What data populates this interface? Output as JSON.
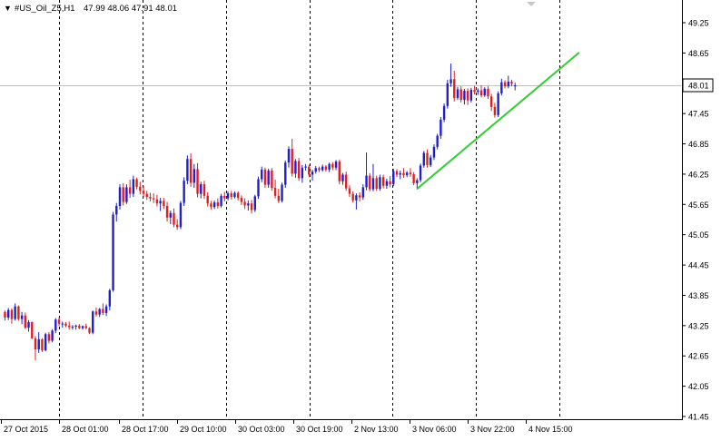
{
  "header": {
    "arrow": "▼",
    "symbol": "#US_Oil_Z5,H1",
    "ohlc": "47.99 48.06 47.91 48.01"
  },
  "chart_data": {
    "type": "candlestick",
    "ylim": [
      41.45,
      49.55
    ],
    "y_ticks": [
      "49.25",
      "48.65",
      "48.01",
      "47.45",
      "46.85",
      "46.25",
      "45.65",
      "45.05",
      "44.45",
      "43.85",
      "43.25",
      "42.65",
      "42.05",
      "41.45"
    ],
    "x_ticks": [
      "27 Oct 2015",
      "28 Oct 01:00",
      "28 Oct 17:00",
      "29 Oct 10:00",
      "30 Oct 03:00",
      "30 Oct 19:00",
      "2 Nov 13:00",
      "3 Nov 06:00",
      "3 Nov 22:00",
      "4 Nov 15:00"
    ],
    "current_price": 48.01,
    "grid": "vertical dashed at date ticks",
    "colors": {
      "up": "#1f1fd0",
      "down": "#e02020",
      "trendline": "#33cc33",
      "price_line": "#c0c0c0",
      "axis": "#000000"
    },
    "trendline": {
      "from": {
        "index": 122,
        "value": 45.96
      },
      "to": {
        "index": 170,
        "value": 48.66
      }
    },
    "candles": [
      [
        43.52,
        43.55,
        43.35,
        43.41
      ],
      [
        43.41,
        43.6,
        43.36,
        43.56
      ],
      [
        43.56,
        43.59,
        43.29,
        43.38
      ],
      [
        43.38,
        43.69,
        43.35,
        43.63
      ],
      [
        43.63,
        43.65,
        43.35,
        43.38
      ],
      [
        43.38,
        43.52,
        43.28,
        43.45
      ],
      [
        43.45,
        43.51,
        43.18,
        43.21
      ],
      [
        43.21,
        43.36,
        43.13,
        43.32
      ],
      [
        43.32,
        43.33,
        42.98,
        43.0
      ],
      [
        43.0,
        43.04,
        42.56,
        42.78
      ],
      [
        42.78,
        43.12,
        42.71,
        42.98
      ],
      [
        42.98,
        43.0,
        42.73,
        42.76
      ],
      [
        42.76,
        43.11,
        42.74,
        43.08
      ],
      [
        43.08,
        43.12,
        42.9,
        42.95
      ],
      [
        42.95,
        43.18,
        42.92,
        43.15
      ],
      [
        43.15,
        43.4,
        43.1,
        43.37
      ],
      [
        43.37,
        43.41,
        43.24,
        43.29
      ],
      [
        43.29,
        43.33,
        43.21,
        43.29
      ],
      [
        43.29,
        43.32,
        43.22,
        43.25
      ],
      [
        43.25,
        43.33,
        43.17,
        43.22
      ],
      [
        43.22,
        43.26,
        43.17,
        43.23
      ],
      [
        43.23,
        43.27,
        43.17,
        43.25
      ],
      [
        43.25,
        43.28,
        43.18,
        43.2
      ],
      [
        43.2,
        43.25,
        43.17,
        43.24
      ],
      [
        43.24,
        43.29,
        43.18,
        43.2
      ],
      [
        43.2,
        43.22,
        43.08,
        43.11
      ],
      [
        43.11,
        43.55,
        43.08,
        43.53
      ],
      [
        43.53,
        43.61,
        43.43,
        43.47
      ],
      [
        43.47,
        43.6,
        43.42,
        43.58
      ],
      [
        43.58,
        43.69,
        43.46,
        43.5
      ],
      [
        43.5,
        43.67,
        43.44,
        43.63
      ],
      [
        43.63,
        43.98,
        43.55,
        43.95
      ],
      [
        43.95,
        45.5,
        43.92,
        45.45
      ],
      [
        45.45,
        45.68,
        45.31,
        45.62
      ],
      [
        45.62,
        46.05,
        45.55,
        45.99
      ],
      [
        45.99,
        46.07,
        45.63,
        45.7
      ],
      [
        45.7,
        46.05,
        45.66,
        45.99
      ],
      [
        45.99,
        46.14,
        45.78,
        45.86
      ],
      [
        45.86,
        46.22,
        45.8,
        46.15
      ],
      [
        46.15,
        46.18,
        45.95,
        46.0
      ],
      [
        46.0,
        46.1,
        45.85,
        45.92
      ],
      [
        45.92,
        46.02,
        45.79,
        45.86
      ],
      [
        45.86,
        45.92,
        45.74,
        45.8
      ],
      [
        45.8,
        45.88,
        45.71,
        45.77
      ],
      [
        45.77,
        45.87,
        45.68,
        45.75
      ],
      [
        45.75,
        45.84,
        45.61,
        45.67
      ],
      [
        45.67,
        45.78,
        45.52,
        45.72
      ],
      [
        45.72,
        45.78,
        45.56,
        45.62
      ],
      [
        45.62,
        45.7,
        45.31,
        45.39
      ],
      [
        45.39,
        45.53,
        45.26,
        45.48
      ],
      [
        45.48,
        45.57,
        45.2,
        45.25
      ],
      [
        45.25,
        45.36,
        45.15,
        45.2
      ],
      [
        45.2,
        45.72,
        45.16,
        45.68
      ],
      [
        45.68,
        46.19,
        45.62,
        46.12
      ],
      [
        46.12,
        46.62,
        46.05,
        46.55
      ],
      [
        46.55,
        46.66,
        46.0,
        46.08
      ],
      [
        46.08,
        46.45,
        45.98,
        46.35
      ],
      [
        46.35,
        46.47,
        45.79,
        45.86
      ],
      [
        45.86,
        46.1,
        45.77,
        46.05
      ],
      [
        46.05,
        46.12,
        45.76,
        45.82
      ],
      [
        45.82,
        45.89,
        45.61,
        45.67
      ],
      [
        45.67,
        45.72,
        45.55,
        45.6
      ],
      [
        45.6,
        45.73,
        45.56,
        45.69
      ],
      [
        45.69,
        45.77,
        45.57,
        45.62
      ],
      [
        45.62,
        45.86,
        45.59,
        45.82
      ],
      [
        45.82,
        45.9,
        45.71,
        45.77
      ],
      [
        45.77,
        45.91,
        45.73,
        45.87
      ],
      [
        45.87,
        45.92,
        45.75,
        45.8
      ],
      [
        45.8,
        45.91,
        45.77,
        45.88
      ],
      [
        45.88,
        45.91,
        45.73,
        45.78
      ],
      [
        45.78,
        45.83,
        45.64,
        45.7
      ],
      [
        45.7,
        45.77,
        45.56,
        45.63
      ],
      [
        45.63,
        45.73,
        45.53,
        45.67
      ],
      [
        45.67,
        45.74,
        45.47,
        45.54
      ],
      [
        45.54,
        45.84,
        45.5,
        45.81
      ],
      [
        45.81,
        46.2,
        45.76,
        46.15
      ],
      [
        46.15,
        46.4,
        46.09,
        46.34
      ],
      [
        46.34,
        46.38,
        45.98,
        46.04
      ],
      [
        46.04,
        46.36,
        45.98,
        46.32
      ],
      [
        46.32,
        46.37,
        45.92,
        45.98
      ],
      [
        45.98,
        46.14,
        45.77,
        45.82
      ],
      [
        45.82,
        45.96,
        45.68,
        45.72
      ],
      [
        45.72,
        46.08,
        45.69,
        46.04
      ],
      [
        46.04,
        46.52,
        45.98,
        46.48
      ],
      [
        46.48,
        46.8,
        46.38,
        46.75
      ],
      [
        46.75,
        46.95,
        46.2,
        46.26
      ],
      [
        46.26,
        46.55,
        46.18,
        46.51
      ],
      [
        46.51,
        46.57,
        46.12,
        46.17
      ],
      [
        46.17,
        46.43,
        46.08,
        46.38
      ],
      [
        46.38,
        46.45,
        46.32,
        46.4
      ],
      [
        46.4,
        46.44,
        46.19,
        46.24
      ],
      [
        46.24,
        46.34,
        46.12,
        46.3
      ],
      [
        46.3,
        46.41,
        46.26,
        46.37
      ],
      [
        46.37,
        46.4,
        46.29,
        46.33
      ],
      [
        46.33,
        46.44,
        46.3,
        46.4
      ],
      [
        46.4,
        46.43,
        46.3,
        46.34
      ],
      [
        46.34,
        46.48,
        46.29,
        46.45
      ],
      [
        46.45,
        46.49,
        46.33,
        46.38
      ],
      [
        46.38,
        46.53,
        46.33,
        46.5
      ],
      [
        46.5,
        46.54,
        46.05,
        46.11
      ],
      [
        46.11,
        46.27,
        46.04,
        46.24
      ],
      [
        46.24,
        46.3,
        45.92,
        45.97
      ],
      [
        45.97,
        46.03,
        45.8,
        45.86
      ],
      [
        45.86,
        45.91,
        45.69,
        45.73
      ],
      [
        45.73,
        45.87,
        45.55,
        45.83
      ],
      [
        45.83,
        45.89,
        45.71,
        45.79
      ],
      [
        45.79,
        46.05,
        45.74,
        45.99
      ],
      [
        45.99,
        46.68,
        45.93,
        46.22
      ],
      [
        46.22,
        46.27,
        45.91,
        45.95
      ],
      [
        45.95,
        46.45,
        45.91,
        46.17
      ],
      [
        46.17,
        46.22,
        45.92,
        45.96
      ],
      [
        45.96,
        46.24,
        45.92,
        46.19
      ],
      [
        46.19,
        46.24,
        45.97,
        46.02
      ],
      [
        46.02,
        46.16,
        45.96,
        46.11
      ],
      [
        46.11,
        46.21,
        45.99,
        46.05
      ],
      [
        46.05,
        46.36,
        46.01,
        46.31
      ],
      [
        46.31,
        46.35,
        46.19,
        46.24
      ],
      [
        46.24,
        46.32,
        46.15,
        46.27
      ],
      [
        46.27,
        46.37,
        46.18,
        46.23
      ],
      [
        46.23,
        46.31,
        46.19,
        46.28
      ],
      [
        46.28,
        46.37,
        46.2,
        46.25
      ],
      [
        46.25,
        46.29,
        46.03,
        46.07
      ],
      [
        46.07,
        46.17,
        45.95,
        46.13
      ],
      [
        46.13,
        46.46,
        46.09,
        46.42
      ],
      [
        46.42,
        46.71,
        46.38,
        46.67
      ],
      [
        46.67,
        46.74,
        46.38,
        46.43
      ],
      [
        46.43,
        46.63,
        46.39,
        46.58
      ],
      [
        46.58,
        46.84,
        46.53,
        46.79
      ],
      [
        46.79,
        47.05,
        46.74,
        47.01
      ],
      [
        47.01,
        47.38,
        46.95,
        47.33
      ],
      [
        47.33,
        47.65,
        47.28,
        47.6
      ],
      [
        47.6,
        48.12,
        47.55,
        48.05
      ],
      [
        48.05,
        48.44,
        47.98,
        48.13
      ],
      [
        48.13,
        48.3,
        47.69,
        47.76
      ],
      [
        47.76,
        47.98,
        47.72,
        47.93
      ],
      [
        47.93,
        47.99,
        47.67,
        47.72
      ],
      [
        47.72,
        47.94,
        47.63,
        47.9
      ],
      [
        47.9,
        47.95,
        47.62,
        47.71
      ],
      [
        47.71,
        47.96,
        47.67,
        47.92
      ],
      [
        47.92,
        48.0,
        47.83,
        47.88
      ],
      [
        47.88,
        47.95,
        47.82,
        47.91
      ],
      [
        47.91,
        48.01,
        47.77,
        47.81
      ],
      [
        47.81,
        47.97,
        47.78,
        47.94
      ],
      [
        47.94,
        47.99,
        47.74,
        47.79
      ],
      [
        47.79,
        47.84,
        47.5,
        47.58
      ],
      [
        47.58,
        47.66,
        47.37,
        47.42
      ],
      [
        47.42,
        47.89,
        47.38,
        47.85
      ],
      [
        47.85,
        48.14,
        47.81,
        48.07
      ],
      [
        48.07,
        48.11,
        47.95,
        47.99
      ],
      [
        47.99,
        48.2,
        47.95,
        48.08
      ],
      [
        48.08,
        48.12,
        47.99,
        48.04
      ],
      [
        47.99,
        48.06,
        47.91,
        48.01
      ]
    ]
  }
}
